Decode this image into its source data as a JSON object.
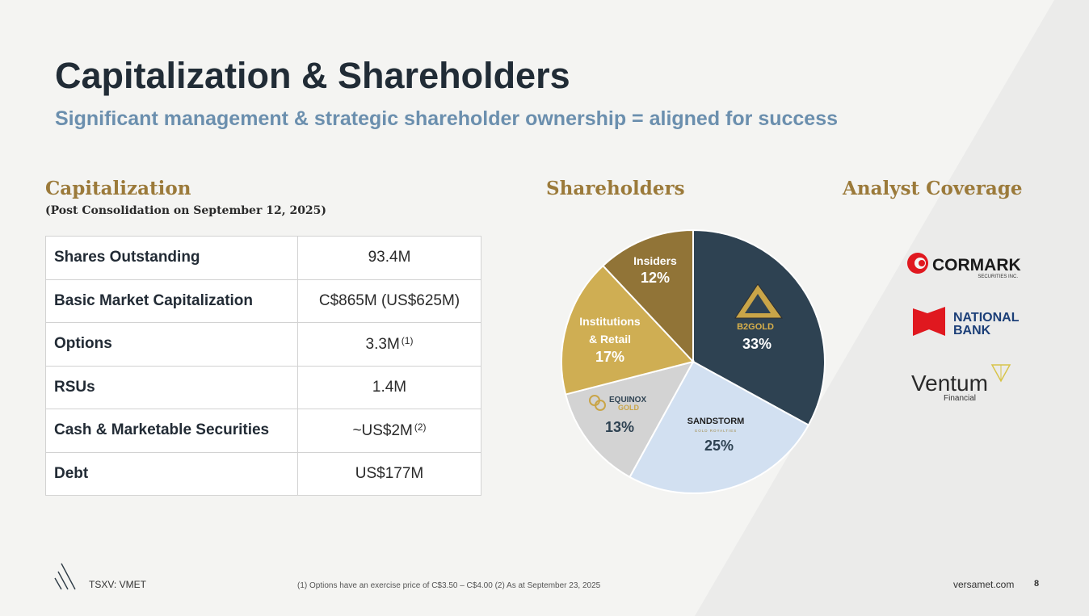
{
  "title": "Capitalization & Shareholders",
  "subtitle": "Significant management & strategic shareholder ownership = aligned for success",
  "capitalization": {
    "heading": "Capitalization",
    "subheading": "(Post Consolidation on September 12, 2025)",
    "rows": [
      {
        "label": "Shares Outstanding",
        "value": "93.4M",
        "note": ""
      },
      {
        "label": "Basic Market Capitalization",
        "value": "C$865M (US$625M)",
        "note": ""
      },
      {
        "label": "Options",
        "value": "3.3M",
        "note": "(1)"
      },
      {
        "label": "RSUs",
        "value": "1.4M",
        "note": ""
      },
      {
        "label": "Cash & Marketable Securities",
        "value": "~US$2M",
        "note": "(2)"
      },
      {
        "label": "Debt",
        "value": "US$177M",
        "note": ""
      }
    ]
  },
  "shareholders": {
    "heading": "Shareholders",
    "logos": {
      "b2gold": "B2GOLD",
      "sandstorm": "SANDSTORM",
      "sandstorm_sub": "GOLD ROYALTIES",
      "equinox_1": "EQUINOX",
      "equinox_2": "GOLD"
    }
  },
  "chart_data": {
    "type": "pie",
    "title": "Shareholders",
    "slices": [
      {
        "name": "B2Gold",
        "value": 33,
        "label": "33%",
        "color": "#2e4252"
      },
      {
        "name": "Sandstorm Gold Royalties",
        "value": 25,
        "label": "25%",
        "color": "#d2e0f1"
      },
      {
        "name": "Equinox Gold",
        "value": 13,
        "label": "13%",
        "color": "#d3d3d3"
      },
      {
        "name": "Institutions & Retail",
        "value": 17,
        "label": "17%",
        "color": "#cfae53"
      },
      {
        "name": "Insiders",
        "value": 12,
        "label": "12%",
        "color": "#917437"
      }
    ],
    "text_labels": {
      "institutions_1": "Institutions",
      "institutions_2": "& Retail",
      "insiders": "Insiders"
    }
  },
  "analyst_coverage": {
    "heading": "Analyst Coverage",
    "cormark": "CORMARK",
    "cormark_sub": "SECURITIES INC.",
    "national_1": "NATIONAL",
    "national_2": "BANK",
    "ventum": "Ventum",
    "ventum_sub": "Financial"
  },
  "footer": {
    "ticker": "TSXV: VMET",
    "note": "(1) Options have an exercise price of C$3.50 – C$4.00    (2) As at September 23, 2025",
    "site": "versamet.com",
    "page": "8"
  },
  "colors": {
    "accent_gold": "#9b7a3a",
    "title": "#212c36",
    "subtitle": "#6b8fae"
  }
}
